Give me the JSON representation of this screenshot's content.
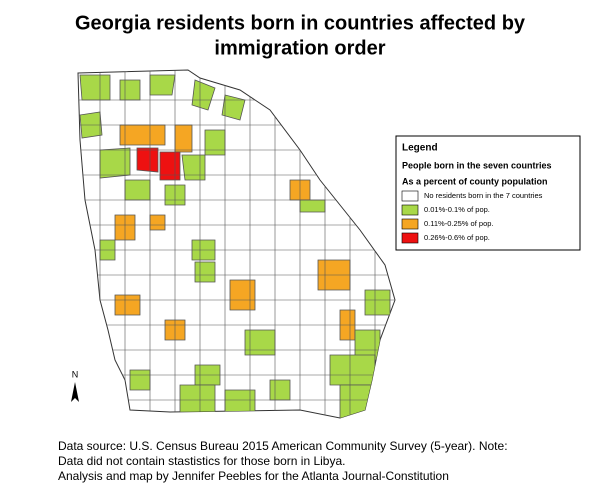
{
  "title_lines": [
    "Georgia residents born in countries affected by",
    "immigration order"
  ],
  "legend": {
    "title": "Legend",
    "subtitle": "People born in the seven countries",
    "caption": "As a percent of county population",
    "items": [
      {
        "label": "No residents born in the 7 countries",
        "color": "#ffffff"
      },
      {
        "label": "0.01%-0.1% of pop.",
        "color": "#a8d848"
      },
      {
        "label": "0.11%-0.25% of pop.",
        "color": "#f5a623"
      },
      {
        "label": "0.26%-0.6% of pop.",
        "color": "#ee1111"
      }
    ]
  },
  "north_label": "N",
  "source_lines": [
    "Data source: U.S. Census Bureau 2015 American Community Survey (5-year). Note:",
    "Data did not contain stastistics for those born in Libya.",
    "Analysis and map by Jennifer Peebles for the Atlanta Journal-Constitution"
  ]
}
